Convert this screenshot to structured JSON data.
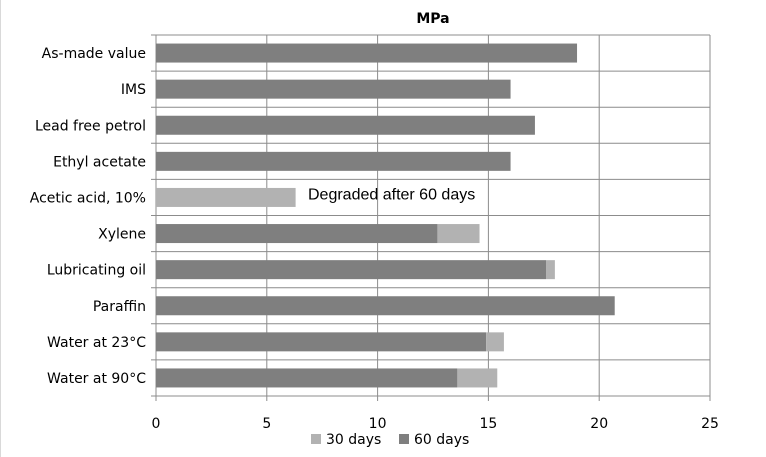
{
  "chart_data": {
    "type": "bar",
    "orientation": "horizontal",
    "stacked": true,
    "title": "MPa",
    "xlabel": "",
    "ylabel": "",
    "xlim": [
      0,
      25
    ],
    "x_ticks": [
      "0",
      "5",
      "10",
      "15",
      "20",
      "25"
    ],
    "grid": true,
    "legend_position": "bottom",
    "categories": [
      "As-made value",
      "IMS",
      "Lead free petrol",
      "Ethyl acetate",
      "Acetic acid, 10%",
      "Xylene",
      "Lubricating oil",
      "Paraffin",
      "Water at 23°C",
      "Water at 90°C"
    ],
    "series": [
      {
        "name": "60 days",
        "color": "#7f7f7f",
        "values": [
          19.0,
          16.0,
          17.1,
          16.0,
          0,
          12.7,
          17.6,
          20.7,
          14.9,
          13.6
        ]
      },
      {
        "name": "30 days",
        "color": "#b2b2b2",
        "values": [
          0,
          0,
          0,
          0,
          6.3,
          1.9,
          0.4,
          0,
          0.8,
          1.8
        ]
      }
    ],
    "legend_order": [
      "30 days",
      "60 days"
    ],
    "annotations": [
      {
        "category": "Acetic acid, 10%",
        "text": "Degraded after 60 days"
      }
    ]
  }
}
